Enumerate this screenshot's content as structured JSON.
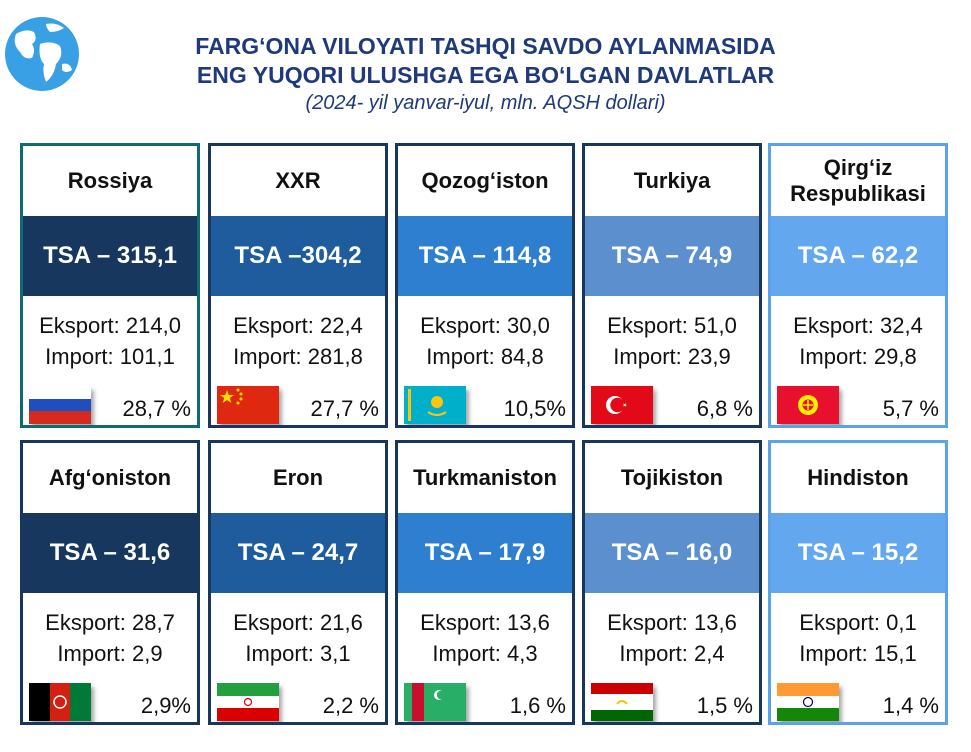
{
  "title_line1": "FARG‘ONA VILOYATI TASHQI SAVDO AYLANMASIDA",
  "title_line2": "ENG YUQORI ULUSHGA EGA BO‘LGAN DAVLATLAR",
  "subtitle": "(2024- yil yanvar-iyul, mln. AQSH dollari)",
  "colors": {
    "title": "#1f3a7a",
    "border": "#17375e",
    "band1": "#17375e",
    "band2": "#1f5c9e",
    "band3": "#2e7fd0",
    "band4": "#5b8fce",
    "band5": "#63a7ee"
  },
  "countries": [
    {
      "name": "Rossiya",
      "tsa": "TSA – 315,1",
      "export": "Eksport: 214,0",
      "import": "Import: 101,1",
      "share": "28,7 %",
      "flag": "russia-flag-icon"
    },
    {
      "name": "XXR",
      "tsa": "TSA –304,2",
      "export": "Eksport: 22,4",
      "import": "Import: 281,8",
      "share": "27,7 %",
      "flag": "china-flag-icon"
    },
    {
      "name": "Qozog‘iston",
      "tsa": "TSA – 114,8",
      "export": "Eksport: 30,0",
      "import": "Import: 84,8",
      "share": "10,5%",
      "flag": "kazakhstan-flag-icon"
    },
    {
      "name": "Turkiya",
      "tsa": "TSA – 74,9",
      "export": "Eksport: 51,0",
      "import": "Import: 23,9",
      "share": "6,8 %",
      "flag": "turkey-flag-icon"
    },
    {
      "name_line1": "Qirg‘iz",
      "name_line2": "Respublikasi",
      "tsa": "TSA – 62,2",
      "export": "Eksport: 32,4",
      "import": "Import: 29,8",
      "share": "5,7 %",
      "flag": "kyrgyzstan-flag-icon"
    },
    {
      "name": "Afg‘oniston",
      "tsa": "TSA – 31,6",
      "export": "Eksport: 28,7",
      "import": "Import: 2,9",
      "share": "2,9%",
      "flag": "afghanistan-flag-icon"
    },
    {
      "name": "Eron",
      "tsa": "TSA – 24,7",
      "export": "Eksport: 21,6",
      "import": "Import: 3,1",
      "share": "2,2 %",
      "flag": "iran-flag-icon"
    },
    {
      "name": "Turkmaniston",
      "tsa": "TSA – 17,9",
      "export": "Eksport: 13,6",
      "import": "Import: 4,3",
      "share": "1,6 %",
      "flag": "turkmenistan-flag-icon"
    },
    {
      "name": "Tojikiston",
      "tsa": "TSA – 16,0",
      "export": "Eksport: 13,6",
      "import": "Import: 2,4",
      "share": "1,5 %",
      "flag": "tajikistan-flag-icon"
    },
    {
      "name": "Hindiston",
      "tsa": "TSA – 15,2",
      "export": "Eksport: 0,1",
      "import": "Import: 15,1",
      "share": "1,4 %",
      "flag": "india-flag-icon"
    }
  ]
}
